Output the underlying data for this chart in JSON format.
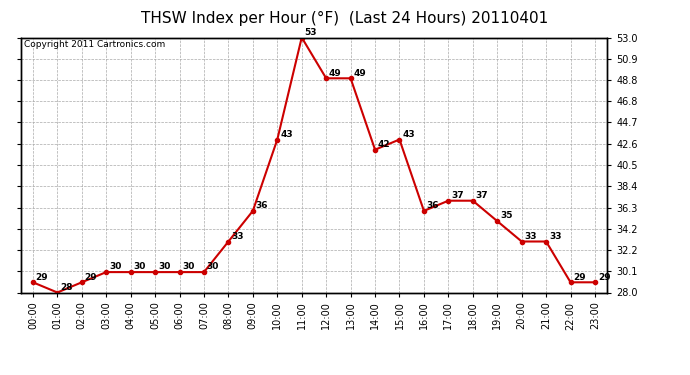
{
  "title": "THSW Index per Hour (°F)  (Last 24 Hours) 20110401",
  "copyright": "Copyright 2011 Cartronics.com",
  "hours": [
    "00:00",
    "01:00",
    "02:00",
    "03:00",
    "04:00",
    "05:00",
    "06:00",
    "07:00",
    "08:00",
    "09:00",
    "10:00",
    "11:00",
    "12:00",
    "13:00",
    "14:00",
    "15:00",
    "16:00",
    "17:00",
    "18:00",
    "19:00",
    "20:00",
    "21:00",
    "22:00",
    "23:00"
  ],
  "values": [
    29,
    28,
    29,
    30,
    30,
    30,
    30,
    30,
    33,
    36,
    43,
    53,
    49,
    49,
    42,
    43,
    36,
    37,
    37,
    35,
    33,
    33,
    29,
    29
  ],
  "line_color": "#cc0000",
  "marker_color": "#cc0000",
  "bg_color": "#ffffff",
  "grid_color": "#aaaaaa",
  "ylim_min": 28.0,
  "ylim_max": 53.0,
  "yticks": [
    28.0,
    30.1,
    32.2,
    34.2,
    36.3,
    38.4,
    40.5,
    42.6,
    44.7,
    46.8,
    48.8,
    50.9,
    53.0
  ],
  "title_fontsize": 11,
  "label_fontsize": 7,
  "annot_fontsize": 6.5,
  "copyright_fontsize": 6.5
}
